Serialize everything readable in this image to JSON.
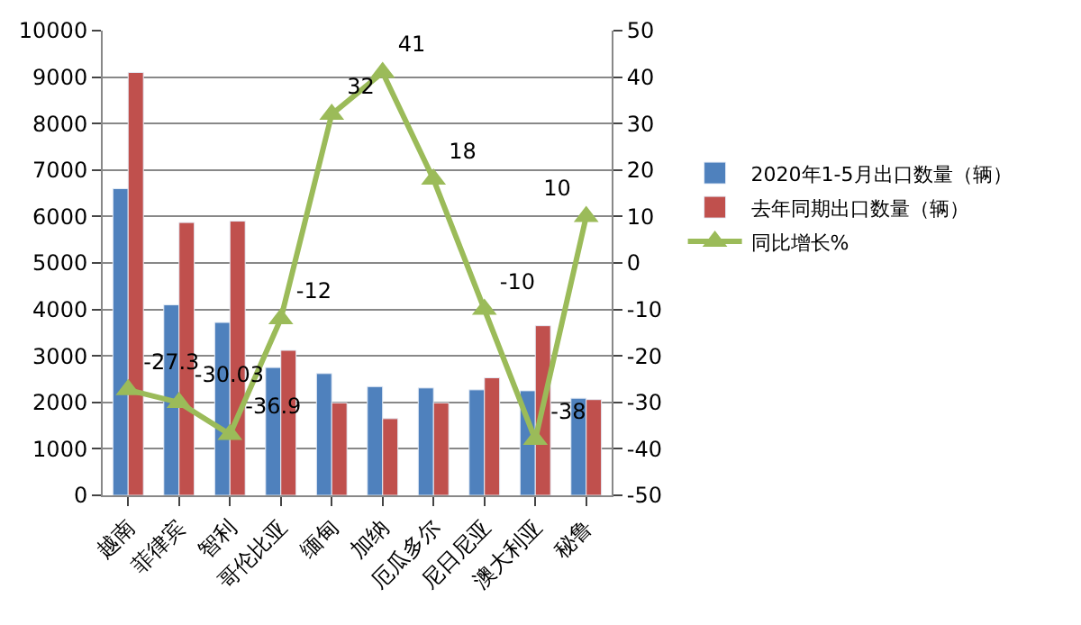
{
  "chart_data": {
    "type": "bar",
    "categories": [
      "越南",
      "菲律宾",
      "智利",
      "哥伦比亚",
      "缅甸",
      "加纳",
      "厄瓜多尔",
      "尼日尼亚",
      "澳大利亚",
      "秘鲁"
    ],
    "series": [
      {
        "name": "2020年1-5月出口数量（辆）",
        "color": "#4f81bd",
        "values": [
          6600,
          4100,
          3720,
          2750,
          2620,
          2340,
          2310,
          2270,
          2250,
          2090
        ]
      },
      {
        "name": "去年同期出口数量（辆）",
        "color": "#c0504d",
        "values": [
          9100,
          5870,
          5900,
          3120,
          1990,
          1650,
          1990,
          2530,
          3650,
          2060
        ]
      },
      {
        "name": "同比增长%",
        "color": "#9bbb59",
        "type": "line",
        "axis": "y2",
        "marker": "triangle",
        "values": [
          -27.3,
          -30.03,
          -36.9,
          -12,
          32,
          41,
          18,
          -10,
          -38,
          10
        ],
        "value_labels": [
          "-27.3",
          "-30.03",
          "-36.9",
          "-12",
          "32",
          "41",
          "18",
          "-10",
          "-38",
          "10"
        ]
      }
    ],
    "ylim": [
      0,
      10000
    ],
    "yticks": [
      0,
      1000,
      2000,
      3000,
      4000,
      5000,
      6000,
      7000,
      8000,
      9000,
      10000
    ],
    "y2lim": [
      -50,
      50
    ],
    "y2ticks": [
      -50,
      -40,
      -30,
      -20,
      -10,
      0,
      10,
      20,
      30,
      40,
      50
    ],
    "grid": "y",
    "legend": "right"
  }
}
